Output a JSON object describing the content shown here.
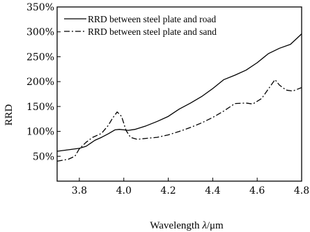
{
  "chart_data": {
    "type": "line",
    "xlabel_prefix": "Wavelength ",
    "xlabel_symbol": "λ",
    "xlabel_unit": "/μm",
    "ylabel": "RRD",
    "xlim": [
      3.7,
      4.8
    ],
    "ylim": [
      0,
      350
    ],
    "xticks": [
      3.8,
      4.0,
      4.2,
      4.4,
      4.6,
      4.8
    ],
    "xtick_labels": [
      "3.8",
      "4.0",
      "4.2",
      "4.4",
      "4.6",
      "4.8"
    ],
    "yticks": [
      50,
      100,
      150,
      200,
      250,
      300,
      350
    ],
    "ytick_labels": [
      "50%",
      "100%",
      "150%",
      "200%",
      "250%",
      "300%",
      "350%"
    ],
    "grid": false,
    "legend_position": "top-left",
    "series": [
      {
        "name": "RRD between steel plate and road",
        "style": "solid",
        "color": "#000000",
        "x": [
          3.7,
          3.75,
          3.8,
          3.83,
          3.85,
          3.87,
          3.9,
          3.93,
          3.96,
          3.98,
          4.0,
          4.02,
          4.05,
          4.1,
          4.15,
          4.2,
          4.25,
          4.3,
          4.35,
          4.4,
          4.45,
          4.5,
          4.55,
          4.6,
          4.65,
          4.7,
          4.75,
          4.8
        ],
        "y": [
          60,
          63,
          66,
          70,
          76,
          82,
          88,
          95,
          103,
          104,
          103,
          102,
          104,
          111,
          120,
          130,
          145,
          157,
          170,
          186,
          204,
          213,
          223,
          238,
          256,
          267,
          275,
          296
        ]
      },
      {
        "name": "RRD between steel plate and sand",
        "style": "dashdot",
        "color": "#000000",
        "x": [
          3.7,
          3.75,
          3.78,
          3.8,
          3.83,
          3.86,
          3.9,
          3.93,
          3.95,
          3.97,
          3.99,
          4.01,
          4.03,
          4.06,
          4.1,
          4.15,
          4.2,
          4.25,
          4.3,
          4.35,
          4.4,
          4.45,
          4.5,
          4.55,
          4.58,
          4.62,
          4.65,
          4.68,
          4.7,
          4.73,
          4.76,
          4.8
        ],
        "y": [
          40,
          44,
          50,
          65,
          78,
          88,
          96,
          112,
          127,
          139,
          130,
          102,
          88,
          84,
          86,
          88,
          93,
          100,
          108,
          117,
          128,
          141,
          156,
          157,
          155,
          166,
          185,
          204,
          193,
          183,
          181,
          188
        ]
      }
    ]
  }
}
